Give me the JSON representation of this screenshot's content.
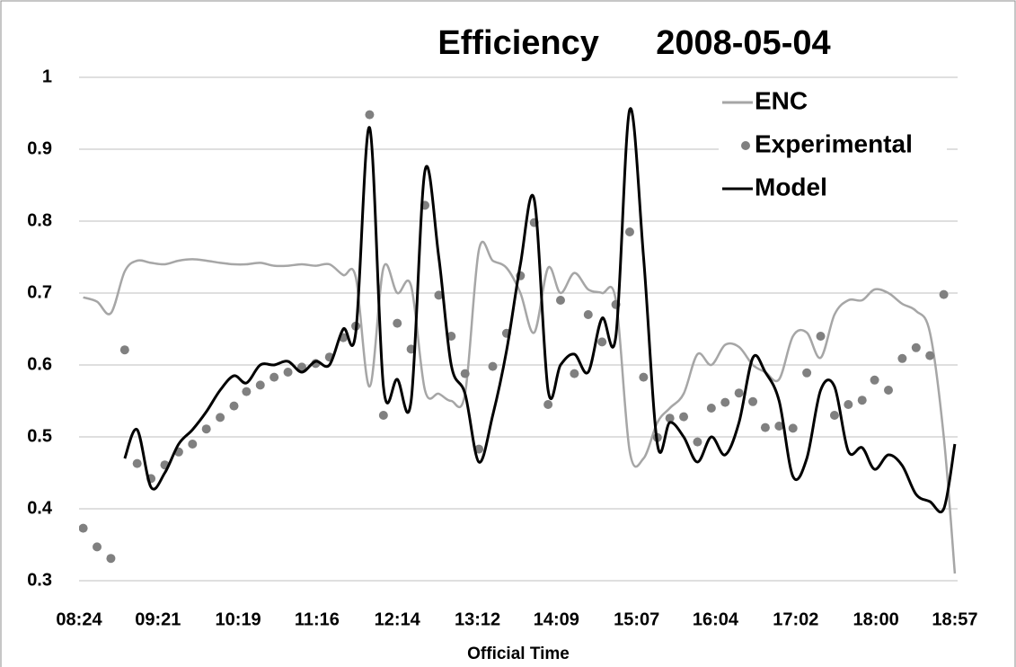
{
  "chart_data": {
    "type": "line",
    "title": "Efficiency      2008-05-04",
    "x_label": "Official Time",
    "x": [
      "08:27",
      "08:37",
      "08:47",
      "08:57",
      "09:06",
      "09:16",
      "09:26",
      "09:36",
      "09:46",
      "09:56",
      "10:06",
      "10:16",
      "10:25",
      "10:35",
      "10:45",
      "10:55",
      "11:05",
      "11:15",
      "11:25",
      "11:35",
      "11:44",
      "11:54",
      "12:04",
      "12:14",
      "12:24",
      "12:34",
      "12:44",
      "12:53",
      "13:03",
      "13:13",
      "13:23",
      "13:33",
      "13:43",
      "13:53",
      "14:03",
      "14:12",
      "14:22",
      "14:32",
      "14:42",
      "14:52",
      "15:02",
      "15:12",
      "15:22",
      "15:31",
      "15:41",
      "15:51",
      "16:01",
      "16:11",
      "16:21",
      "16:31",
      "16:40",
      "16:50",
      "17:00",
      "17:10",
      "17:20",
      "17:30",
      "17:40",
      "17:50",
      "17:59",
      "18:09",
      "18:19",
      "18:29",
      "18:39",
      "18:49",
      "18:57"
    ],
    "series": [
      {
        "name": "ENC",
        "color": "#a6a6a6",
        "style": "line",
        "values": [
          0.694,
          0.688,
          0.672,
          0.73,
          0.745,
          0.742,
          0.74,
          0.745,
          0.747,
          0.745,
          0.742,
          0.74,
          0.74,
          0.742,
          0.738,
          0.738,
          0.74,
          0.738,
          0.74,
          0.725,
          0.722,
          0.57,
          0.735,
          0.7,
          0.71,
          0.565,
          0.56,
          0.55,
          0.56,
          0.76,
          0.745,
          0.735,
          0.7,
          0.645,
          0.735,
          0.7,
          0.728,
          0.705,
          0.7,
          0.69,
          0.48,
          0.47,
          0.52,
          0.54,
          0.56,
          0.615,
          0.6,
          0.628,
          0.625,
          0.6,
          0.59,
          0.58,
          0.64,
          0.645,
          0.61,
          0.67,
          0.69,
          0.69,
          0.705,
          0.7,
          0.685,
          0.675,
          0.645,
          0.5,
          0.31
        ]
      },
      {
        "name": "Experimental",
        "color": "#808080",
        "style": "dots",
        "values": [
          0.373,
          0.347,
          0.331,
          0.621,
          0.463,
          0.442,
          0.461,
          0.479,
          0.49,
          0.511,
          0.527,
          0.543,
          0.563,
          0.572,
          0.583,
          0.59,
          0.597,
          0.602,
          0.611,
          0.638,
          0.654,
          0.948,
          0.53,
          0.658,
          0.622,
          0.822,
          0.697,
          0.64,
          0.588,
          0.483,
          0.598,
          0.644,
          0.724,
          0.798,
          0.545,
          0.69,
          0.588,
          0.67,
          0.632,
          0.684,
          0.785,
          0.583,
          0.499,
          0.526,
          0.528,
          0.493,
          0.54,
          0.548,
          0.561,
          0.549,
          0.513,
          0.515,
          0.512,
          0.589,
          0.64,
          0.53,
          0.545,
          0.551,
          0.579,
          0.565,
          0.609,
          0.624,
          0.613,
          0.698,
          null
        ]
      },
      {
        "name": "Model",
        "color": "#000000",
        "style": "line",
        "values": [
          null,
          null,
          null,
          0.47,
          0.51,
          0.43,
          0.45,
          0.49,
          0.51,
          0.535,
          0.565,
          0.585,
          0.575,
          0.6,
          0.6,
          0.605,
          0.59,
          0.605,
          0.6,
          0.65,
          0.645,
          0.93,
          0.57,
          0.58,
          0.55,
          0.87,
          0.75,
          0.6,
          0.56,
          0.465,
          0.53,
          0.62,
          0.74,
          0.83,
          0.565,
          0.6,
          0.615,
          0.59,
          0.665,
          0.64,
          0.955,
          0.75,
          0.49,
          0.52,
          0.5,
          0.465,
          0.5,
          0.475,
          0.52,
          0.61,
          0.59,
          0.55,
          0.445,
          0.47,
          0.565,
          0.57,
          0.48,
          0.485,
          0.455,
          0.475,
          0.46,
          0.42,
          0.41,
          0.4,
          0.49
        ]
      }
    ],
    "xlim": [
      "08:24",
      "18:59"
    ],
    "xticks": [
      "08:24",
      "09:21",
      "10:19",
      "11:16",
      "12:14",
      "13:12",
      "14:09",
      "15:07",
      "16:04",
      "17:02",
      "18:00",
      "18:57"
    ],
    "ylim": [
      0.3,
      1
    ],
    "yticks": [
      0.3,
      0.4,
      0.5,
      0.6,
      0.7,
      0.8,
      0.9,
      1
    ],
    "grid": true,
    "legend": "top-right"
  }
}
